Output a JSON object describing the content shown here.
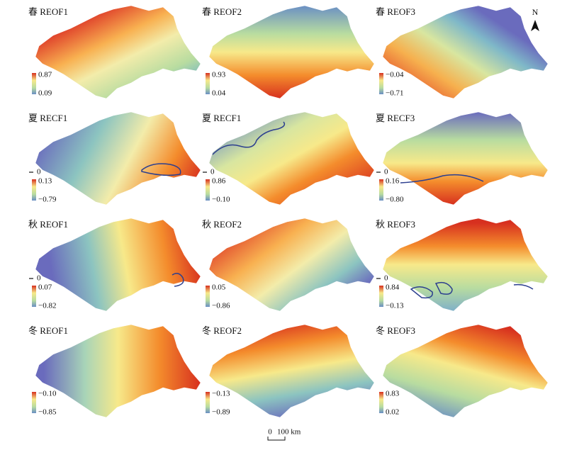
{
  "panels": [
    {
      "title": "春 REOF1",
      "legend_max": "0.87",
      "legend_min": "0.09"
    },
    {
      "title": "春 REOF2",
      "legend_max": "0.93",
      "legend_min": "0.04"
    },
    {
      "title": "春 REOF3",
      "legend_max": "−0.04",
      "legend_min": "−0.71"
    },
    {
      "title": "夏 RECF1",
      "contour": "0",
      "legend_max": "0.13",
      "legend_min": "−0.79"
    },
    {
      "title": "夏 RECF1",
      "contour": "0",
      "legend_max": "0.86",
      "legend_min": "−0.10"
    },
    {
      "title": "夏 RECF3",
      "contour": "0",
      "legend_max": "0.16",
      "legend_min": "−0.80"
    },
    {
      "title": "秋 REOF1",
      "contour": "0",
      "legend_max": "0.07",
      "legend_min": "−0.82"
    },
    {
      "title": "秋 REOF2",
      "legend_max": "0.05",
      "legend_min": "−0.86"
    },
    {
      "title": "秋 REOF3",
      "contour": "0",
      "legend_max": "0.84",
      "legend_min": "−0.13"
    },
    {
      "title": "冬 REOF1",
      "legend_max": "−0.10",
      "legend_min": "−0.85"
    },
    {
      "title": "冬 REOF2",
      "legend_max": "−0.13",
      "legend_min": "−0.89"
    },
    {
      "title": "冬 REOF3",
      "legend_max": "0.83",
      "legend_min": "0.02"
    }
  ],
  "north": "N",
  "scale_bar": {
    "start": "0",
    "end": "100 km"
  }
}
